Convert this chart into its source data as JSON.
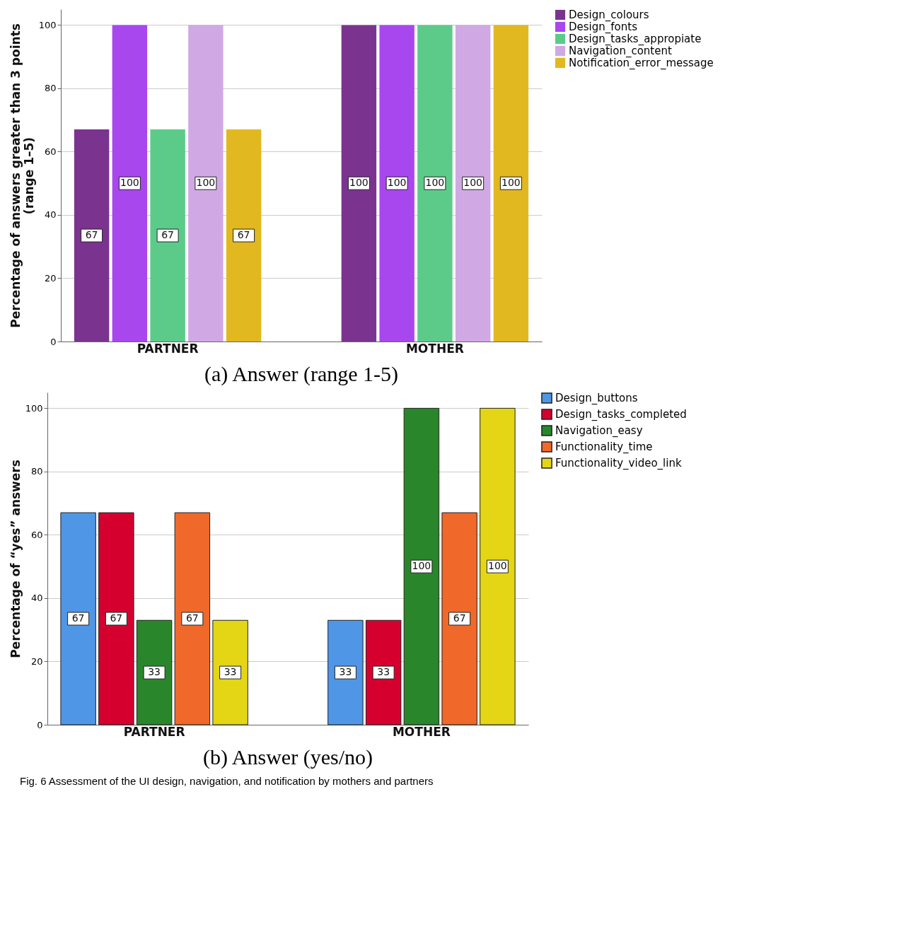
{
  "chart_data": [
    {
      "type": "bar",
      "title": "(a) Answer (range 1-5)",
      "ylabel": "Percentage of answers greater than 3 points\n(range 1–5)",
      "categories": [
        "PARTNER",
        "MOTHER"
      ],
      "series": [
        {
          "name": "Design_colours",
          "color": "#7a3490",
          "values": [
            67,
            100
          ]
        },
        {
          "name": "Design_fonts",
          "color": "#a947ee",
          "values": [
            100,
            100
          ]
        },
        {
          "name": "Design_tasks_appropiate",
          "color": "#5ccb8a",
          "values": [
            67,
            100
          ]
        },
        {
          "name": "Navigation_content",
          "color": "#d0a9e4",
          "values": [
            100,
            100
          ]
        },
        {
          "name": "Notification_error_message",
          "color": "#e2b820",
          "values": [
            67,
            100
          ]
        }
      ],
      "ylim": [
        0,
        105
      ],
      "yticks": [
        0,
        20,
        40,
        60,
        80,
        100
      ],
      "grid": "y",
      "legend": "top right",
      "data_labels": true
    },
    {
      "type": "bar",
      "title": "(b) Answer (yes/no)",
      "ylabel": "Percentage of “yes” answers",
      "categories": [
        "PARTNER",
        "MOTHER"
      ],
      "series": [
        {
          "name": "Design_buttons",
          "color": "#5096e6",
          "values": [
            67,
            33
          ]
        },
        {
          "name": "Design_tasks_completed",
          "color": "#d6002f",
          "values": [
            67,
            33
          ]
        },
        {
          "name": "Navigation_easy",
          "color": "#2a862a",
          "values": [
            33,
            100
          ]
        },
        {
          "name": "Functionality_time",
          "color": "#f0682a",
          "values": [
            67,
            67
          ]
        },
        {
          "name": "Functionality_video_link",
          "color": "#e4d614",
          "values": [
            33,
            100
          ]
        }
      ],
      "ylim": [
        0,
        105
      ],
      "yticks": [
        0,
        20,
        40,
        60,
        80,
        100
      ],
      "grid": "y",
      "legend": "top right",
      "data_labels": true,
      "annotations": [
        "Fig. 6  Assessment of the UI design, navigation, and notification by mothers and partners"
      ]
    }
  ]
}
